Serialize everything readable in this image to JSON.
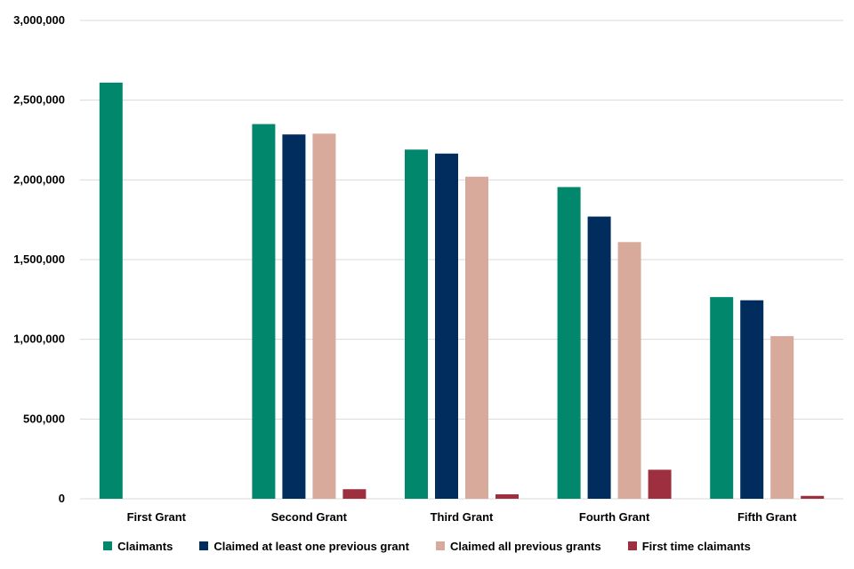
{
  "chart_data": {
    "type": "bar",
    "title": "",
    "xlabel": "",
    "ylabel": "",
    "categories": [
      "First Grant",
      "Second Grant",
      "Third Grant",
      "Fourth Grant",
      "Fifth Grant"
    ],
    "ylim": [
      0,
      3000000
    ],
    "yticks": [
      0,
      500000,
      1000000,
      1500000,
      2000000,
      2500000,
      3000000
    ],
    "ytick_labels": [
      "0",
      "500,000",
      "1,000,000",
      "1,500,000",
      "2,000,000",
      "2,500,000",
      "3,000,000"
    ],
    "grid": true,
    "legend_position": "bottom",
    "series": [
      {
        "name": "Claimants",
        "color": "#00876c",
        "values": [
          2610000,
          2350000,
          2190000,
          1955000,
          1265000
        ]
      },
      {
        "name": "Claimed at least one previous grant",
        "color": "#002d5e",
        "values": [
          null,
          2285000,
          2165000,
          1770000,
          1245000
        ]
      },
      {
        "name": "Claimed all previous grants",
        "color": "#d8aa9b",
        "values": [
          null,
          2290000,
          2020000,
          1610000,
          1020000
        ]
      },
      {
        "name": "First time claimants",
        "color": "#9e2f3e",
        "values": [
          null,
          60000,
          28000,
          182000,
          18000
        ]
      }
    ]
  }
}
